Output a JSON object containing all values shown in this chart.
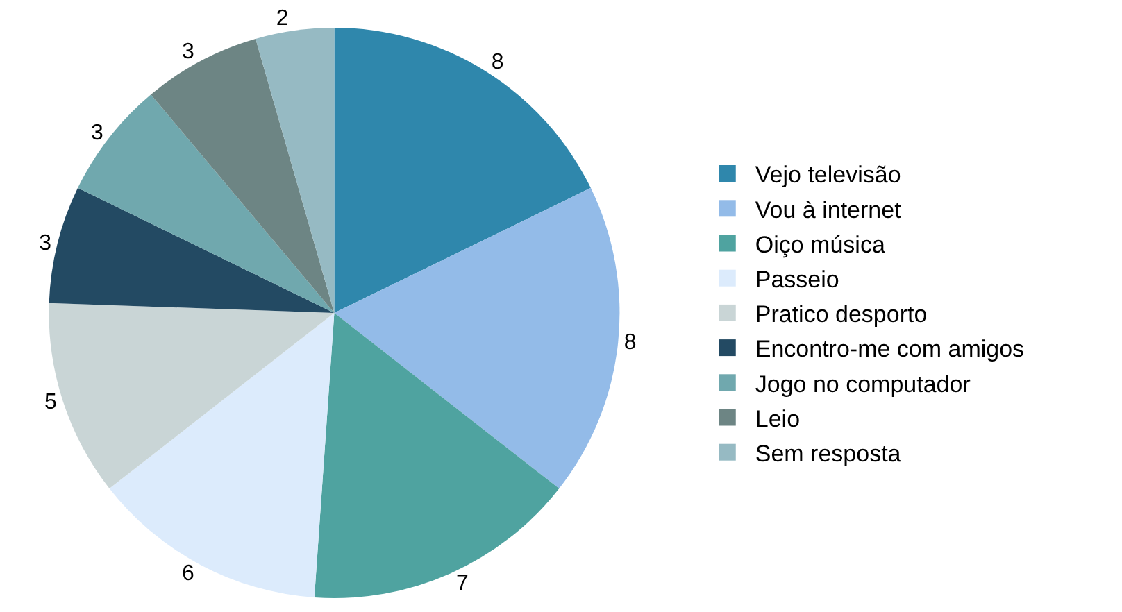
{
  "chart_data": {
    "type": "pie",
    "categories": [
      "Vejo televisão",
      "Vou à internet",
      "Oiço música",
      "Passeio",
      "Pratico desporto",
      "Encontro-me com amigos",
      "Jogo no computador",
      "Leio",
      "Sem resposta"
    ],
    "values": [
      8,
      8,
      7,
      6,
      5,
      3,
      3,
      3,
      2
    ],
    "colors": [
      "#2f87ac",
      "#93bbe8",
      "#4fa3a0",
      "#dcebfc",
      "#c9d5d6",
      "#234a63",
      "#70a8ae",
      "#6d8584",
      "#96bac3"
    ],
    "data_labels": true,
    "legend": "right"
  }
}
